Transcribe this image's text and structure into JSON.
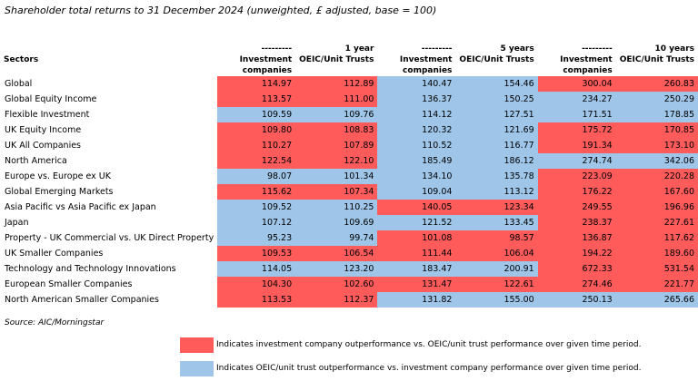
{
  "title": "Shareholder total returns to 31 December 2024 (unweighted, £ adjusted, base = 100)",
  "colors": {
    "outperform_ic": "#ff5b5b",
    "outperform_oeic": "#9fc5e8"
  },
  "header": {
    "sectors_label": "Sectors",
    "dashes": "---------",
    "period_1y": "1 year",
    "period_5y": "5 years",
    "period_10y": "10 years",
    "ic_line1": "Investment",
    "ic_line2": "companies",
    "oeic": "OEIC/Unit Trusts"
  },
  "rows": [
    {
      "sector": "Global",
      "v": [
        "114.97",
        "112.89",
        "140.47",
        "154.46",
        "300.04",
        "260.83"
      ],
      "c": [
        "r",
        "r",
        "b",
        "b",
        "r",
        "r"
      ]
    },
    {
      "sector": "Global Equity Income",
      "v": [
        "113.57",
        "111.00",
        "136.37",
        "150.25",
        "234.27",
        "250.29"
      ],
      "c": [
        "r",
        "r",
        "b",
        "b",
        "b",
        "b"
      ]
    },
    {
      "sector": "Flexible Investment",
      "v": [
        "109.59",
        "109.76",
        "114.12",
        "127.51",
        "171.51",
        "178.85"
      ],
      "c": [
        "b",
        "b",
        "b",
        "b",
        "b",
        "b"
      ]
    },
    {
      "sector": "UK Equity Income",
      "v": [
        "109.80",
        "108.83",
        "120.32",
        "121.69",
        "175.72",
        "170.85"
      ],
      "c": [
        "r",
        "r",
        "b",
        "b",
        "r",
        "r"
      ]
    },
    {
      "sector": "UK All Companies",
      "v": [
        "110.27",
        "107.89",
        "110.52",
        "116.77",
        "191.34",
        "173.10"
      ],
      "c": [
        "r",
        "r",
        "b",
        "b",
        "r",
        "r"
      ]
    },
    {
      "sector": "North America",
      "v": [
        "122.54",
        "122.10",
        "185.49",
        "186.12",
        "274.74",
        "342.06"
      ],
      "c": [
        "r",
        "r",
        "b",
        "b",
        "b",
        "b"
      ]
    },
    {
      "sector": "Europe vs. Europe ex UK",
      "v": [
        "98.07",
        "101.34",
        "134.10",
        "135.78",
        "223.09",
        "220.28"
      ],
      "c": [
        "b",
        "b",
        "b",
        "b",
        "r",
        "r"
      ]
    },
    {
      "sector": "Global Emerging Markets",
      "v": [
        "115.62",
        "107.34",
        "109.04",
        "113.12",
        "176.22",
        "167.60"
      ],
      "c": [
        "r",
        "r",
        "b",
        "b",
        "r",
        "r"
      ]
    },
    {
      "sector": "Asia Pacific vs Asia Pacific ex Japan",
      "v": [
        "109.52",
        "110.25",
        "140.05",
        "123.34",
        "249.55",
        "196.96"
      ],
      "c": [
        "b",
        "b",
        "r",
        "r",
        "r",
        "r"
      ]
    },
    {
      "sector": "Japan",
      "v": [
        "107.12",
        "109.69",
        "121.52",
        "133.45",
        "238.37",
        "227.61"
      ],
      "c": [
        "b",
        "b",
        "b",
        "b",
        "r",
        "r"
      ]
    },
    {
      "sector": "Property - UK Commercial vs. UK Direct Property",
      "v": [
        "95.23",
        "99.74",
        "101.08",
        "98.57",
        "136.87",
        "117.62"
      ],
      "c": [
        "b",
        "b",
        "r",
        "r",
        "r",
        "r"
      ]
    },
    {
      "sector": "UK Smaller Companies",
      "v": [
        "109.53",
        "106.54",
        "111.44",
        "106.04",
        "194.22",
        "189.60"
      ],
      "c": [
        "r",
        "r",
        "r",
        "r",
        "r",
        "r"
      ]
    },
    {
      "sector": "Technology and Technology Innovations",
      "v": [
        "114.05",
        "123.20",
        "183.47",
        "200.91",
        "672.33",
        "531.54"
      ],
      "c": [
        "b",
        "b",
        "b",
        "b",
        "r",
        "r"
      ]
    },
    {
      "sector": "European Smaller Companies",
      "v": [
        "104.30",
        "102.60",
        "131.47",
        "122.61",
        "274.46",
        "221.77"
      ],
      "c": [
        "r",
        "r",
        "r",
        "r",
        "r",
        "r"
      ]
    },
    {
      "sector": "North American Smaller Companies",
      "v": [
        "113.53",
        "112.37",
        "131.82",
        "155.00",
        "250.13",
        "265.66"
      ],
      "c": [
        "r",
        "r",
        "b",
        "b",
        "b",
        "b"
      ]
    }
  ],
  "source": "Source: AIC/Morningstar",
  "legend": {
    "red_text": "Indicates investment company outperformance vs. OEIC/unit trust performance over given time period.",
    "blue_text": "Indicates OEIC/unit trust outperformance vs. investment company performance over given time period."
  }
}
